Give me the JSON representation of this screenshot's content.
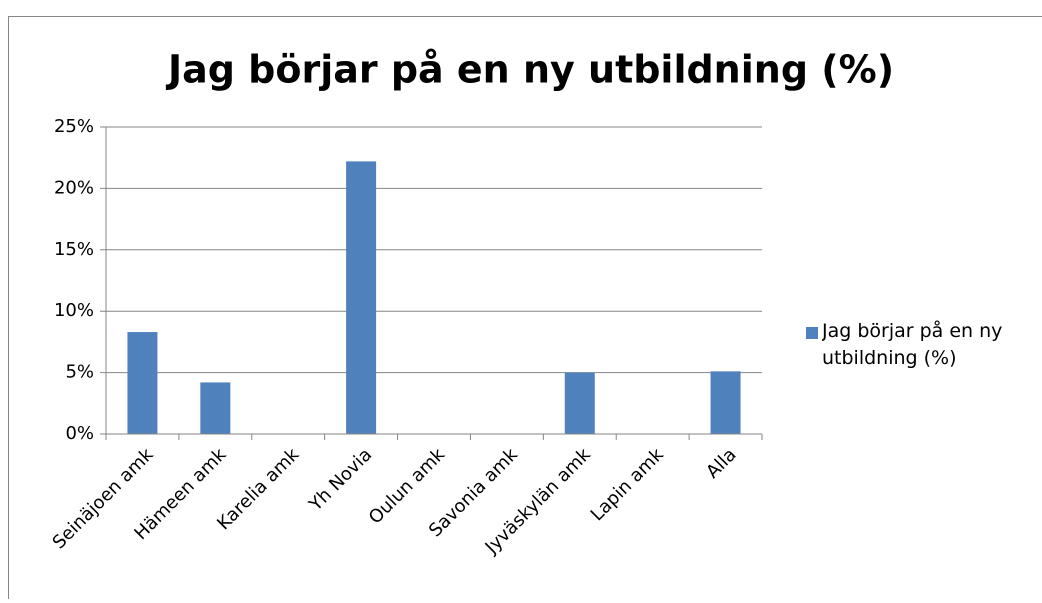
{
  "chart_data": {
    "type": "bar",
    "title": "Jag börjar på en ny utbildning (%)",
    "categories": [
      "Seinäjoen amk",
      "Hämeen amk",
      "Karelia amk",
      "Yh Novia",
      "Oulun amk",
      "Savonia amk",
      "Jyväskylän amk",
      "Lapin amk",
      "Alla"
    ],
    "series": [
      {
        "name": "Jag börjar på en ny utbildning (%)",
        "color": "#4f81bd",
        "values": [
          8.3,
          4.2,
          0,
          22.2,
          0,
          0,
          5.0,
          0,
          5.1
        ]
      }
    ],
    "ylim": [
      0,
      25
    ],
    "yticks": [
      {
        "value": 0,
        "label": "0%"
      },
      {
        "value": 5,
        "label": "5%"
      },
      {
        "value": 10,
        "label": "10%"
      },
      {
        "value": 15,
        "label": "15%"
      },
      {
        "value": 20,
        "label": "20%"
      },
      {
        "value": 25,
        "label": "25%"
      }
    ],
    "grid": true,
    "legend": "right"
  }
}
